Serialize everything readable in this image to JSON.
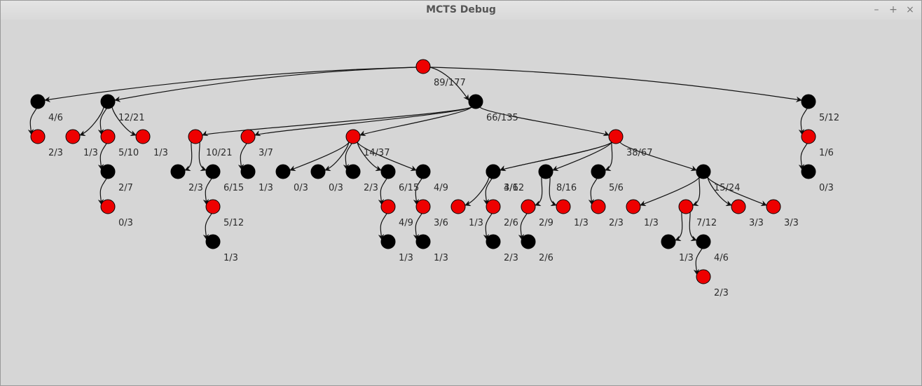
{
  "window": {
    "title": "MCTS Debug",
    "controls": {
      "minimize": "–",
      "maximize": "+",
      "close": "×"
    }
  },
  "colors": {
    "red": "#ee0000",
    "black": "#000000",
    "edge": "#111111",
    "label": "#2b2b2b"
  },
  "tree": {
    "id": "root",
    "color": "red",
    "label": "89/177",
    "children": [
      {
        "id": "a",
        "color": "black",
        "label": "4/6",
        "children": [
          {
            "id": "a1",
            "color": "red",
            "label": "2/3"
          }
        ]
      },
      {
        "id": "b",
        "color": "black",
        "label": "12/21",
        "children": [
          {
            "id": "b1",
            "color": "red",
            "label": "1/3"
          },
          {
            "id": "b2",
            "color": "red",
            "label": "5/10",
            "children": [
              {
                "id": "b21",
                "color": "black",
                "label": "2/7",
                "children": [
                  {
                    "id": "b211",
                    "color": "red",
                    "label": "0/3"
                  }
                ]
              }
            ]
          },
          {
            "id": "b3",
            "color": "red",
            "label": "1/3"
          }
        ]
      },
      {
        "id": "c",
        "color": "black",
        "label": "66/135",
        "children": [
          {
            "id": "c1",
            "color": "red",
            "label": "10/21",
            "children": [
              {
                "id": "c11",
                "color": "black",
                "label": "2/3"
              },
              {
                "id": "c12",
                "color": "black",
                "label": "6/15",
                "children": [
                  {
                    "id": "c121",
                    "color": "red",
                    "label": "5/12",
                    "children": [
                      {
                        "id": "c1211",
                        "color": "black",
                        "label": "1/3"
                      }
                    ]
                  }
                ]
              }
            ]
          },
          {
            "id": "c2",
            "color": "red",
            "label": "3/7",
            "children": [
              {
                "id": "c21",
                "color": "black",
                "label": "1/3"
              }
            ]
          },
          {
            "id": "c3",
            "color": "red",
            "label": "14/37",
            "children": [
              {
                "id": "c31",
                "color": "black",
                "label": "0/3"
              },
              {
                "id": "c32",
                "color": "black",
                "label": "0/3"
              },
              {
                "id": "c33",
                "color": "black",
                "label": "2/3"
              },
              {
                "id": "c34",
                "color": "black",
                "label": "6/15",
                "children": [
                  {
                    "id": "c341",
                    "color": "red",
                    "label": "4/9",
                    "children": [
                      {
                        "id": "c3411",
                        "color": "black",
                        "label": "1/3"
                      }
                    ]
                  }
                ]
              },
              {
                "id": "c35",
                "color": "black",
                "label": "4/9",
                "children": [
                  {
                    "id": "c351",
                    "color": "red",
                    "label": "3/6",
                    "children": [
                      {
                        "id": "c3511",
                        "color": "black",
                        "label": "1/3"
                      }
                    ]
                  }
                ]
              }
            ]
          },
          {
            "id": "c4",
            "color": "red",
            "label": "38/67",
            "children": [
              {
                "id": "c41",
                "color": "black",
                "label": "3/6",
                "children": [
                  {
                    "id": "c411",
                    "color": "red",
                    "label": "1/3"
                  }
                ]
              },
              {
                "id": "c42",
                "color": "black",
                "label": "4/12",
                "children": [
                  {
                    "id": "c421",
                    "color": "red",
                    "label": "2/6",
                    "children": [
                      {
                        "id": "c4211",
                        "color": "black",
                        "label": "2/3"
                      }
                    ]
                  }
                ]
              },
              {
                "id": "c43",
                "color": "black",
                "label": "8/16",
                "children": [
                  {
                    "id": "c431",
                    "color": "red",
                    "label": "2/9",
                    "children": [
                      {
                        "id": "c4311",
                        "color": "black",
                        "label": "2/6"
                      }
                    ]
                  },
                  {
                    "id": "c432",
                    "color": "red",
                    "label": "1/3"
                  }
                ]
              },
              {
                "id": "c44",
                "color": "black",
                "label": "5/6",
                "children": [
                  {
                    "id": "c441",
                    "color": "red",
                    "label": "2/3"
                  }
                ]
              },
              {
                "id": "c45",
                "color": "black",
                "label": "15/24",
                "children": [
                  {
                    "id": "c451",
                    "color": "red",
                    "label": "1/3"
                  },
                  {
                    "id": "c452",
                    "color": "red",
                    "label": "7/12",
                    "children": [
                      {
                        "id": "c4521",
                        "color": "black",
                        "label": "1/3"
                      },
                      {
                        "id": "c4522",
                        "color": "black",
                        "label": "4/6",
                        "children": [
                          {
                            "id": "c45221",
                            "color": "red",
                            "label": "2/3"
                          }
                        ]
                      }
                    ]
                  },
                  {
                    "id": "c453",
                    "color": "red",
                    "label": "3/3"
                  },
                  {
                    "id": "c454",
                    "color": "red",
                    "label": "3/3"
                  }
                ]
              }
            ]
          }
        ]
      },
      {
        "id": "d",
        "color": "black",
        "label": "5/12",
        "children": [
          {
            "id": "d1",
            "color": "red",
            "label": "1/6",
            "children": [
              {
                "id": "d11",
                "color": "black",
                "label": "0/3"
              }
            ]
          }
        ]
      }
    ]
  }
}
